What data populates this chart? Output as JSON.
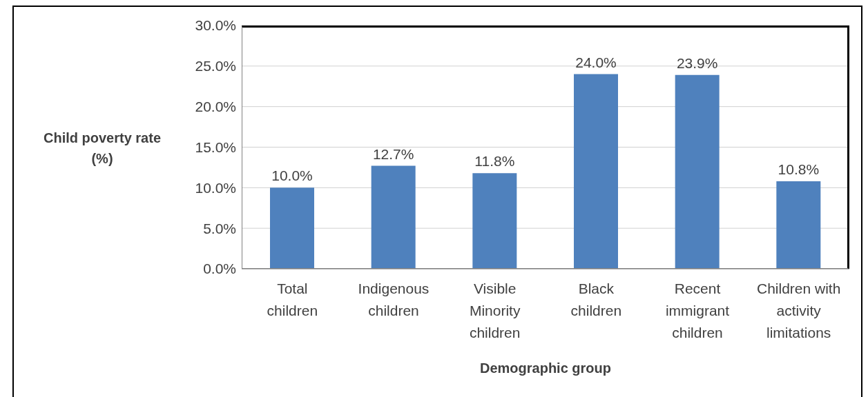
{
  "chart_data": {
    "type": "bar",
    "categories": [
      "Total children",
      "Indigenous children",
      "Visible Minority children",
      "Black children",
      "Recent immigrant children",
      "Children with activity limitations"
    ],
    "values": [
      10.0,
      12.7,
      11.8,
      24.0,
      23.9,
      10.8
    ],
    "value_labels": [
      "10.0%",
      "12.7%",
      "11.8%",
      "24.0%",
      "23.9%",
      "10.8%"
    ],
    "color": "#4f81bd",
    "xlabel": "Demographic group",
    "ylabel": "Child poverty rate (%)",
    "ylim": [
      0,
      30
    ],
    "yticks": [
      {
        "value": 0,
        "label": "0.0%"
      },
      {
        "value": 5,
        "label": "5.0%"
      },
      {
        "value": 10,
        "label": "10.0%"
      },
      {
        "value": 15,
        "label": "15.0%"
      },
      {
        "value": 20,
        "label": "20.0%"
      },
      {
        "value": 25,
        "label": "25.0%"
      },
      {
        "value": 30,
        "label": "30.0%"
      }
    ],
    "grid": "y"
  }
}
